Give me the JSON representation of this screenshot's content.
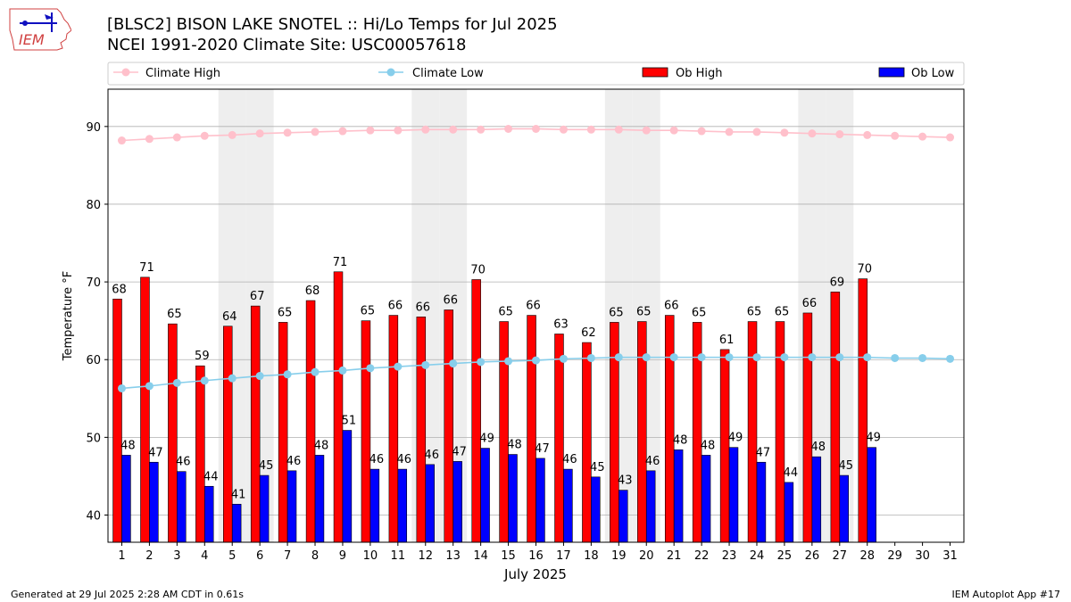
{
  "title_line1": "[BLSC2] BISON LAKE SNOTEL :: Hi/Lo Temps for Jul 2025",
  "title_line2": "NCEI 1991-2020 Climate Site: USC00057618",
  "logo_text": "IEM",
  "footer_left": "Generated at 29 Jul 2025 2:28 AM CDT in 0.61s",
  "footer_right": "IEM Autoplot App #17",
  "colors": {
    "ob_high": "#ff0000",
    "ob_low": "#0000ff",
    "climate_high": "#ffc0cb",
    "climate_low": "#87ceeb",
    "weekend_band": "#eeeeee",
    "grid": "#b0b0b0"
  },
  "chart_data": {
    "type": "bar",
    "xlabel": "July 2025",
    "ylabel": "Temperature °F",
    "ylim": [
      36.5,
      94.8
    ],
    "yticks": [
      40,
      50,
      60,
      70,
      80,
      90
    ],
    "grid": "horizontal",
    "legend_placement": "top",
    "categories": [
      1,
      2,
      3,
      4,
      5,
      6,
      7,
      8,
      9,
      10,
      11,
      12,
      13,
      14,
      15,
      16,
      17,
      18,
      19,
      20,
      21,
      22,
      23,
      24,
      25,
      26,
      27,
      28,
      29,
      30,
      31
    ],
    "shaded_days": [
      5,
      6,
      12,
      13,
      19,
      20,
      26,
      27
    ],
    "series": [
      {
        "name": "Climate High",
        "kind": "line",
        "values": [
          88.2,
          88.4,
          88.6,
          88.8,
          88.9,
          89.1,
          89.2,
          89.3,
          89.4,
          89.5,
          89.5,
          89.6,
          89.6,
          89.6,
          89.7,
          89.7,
          89.6,
          89.6,
          89.6,
          89.5,
          89.5,
          89.4,
          89.3,
          89.3,
          89.2,
          89.1,
          89.0,
          88.9,
          88.8,
          88.7,
          88.6
        ]
      },
      {
        "name": "Climate Low",
        "kind": "line",
        "values": [
          56.3,
          56.6,
          57.0,
          57.3,
          57.6,
          57.9,
          58.1,
          58.4,
          58.6,
          58.9,
          59.1,
          59.3,
          59.5,
          59.7,
          59.8,
          59.9,
          60.1,
          60.2,
          60.3,
          60.3,
          60.3,
          60.3,
          60.3,
          60.3,
          60.3,
          60.3,
          60.3,
          60.3,
          60.2,
          60.2,
          60.1
        ]
      },
      {
        "name": "Ob High",
        "kind": "bar",
        "values": [
          67.8,
          70.6,
          64.6,
          59.2,
          64.3,
          66.9,
          64.8,
          67.6,
          71.3,
          65.0,
          65.7,
          65.5,
          66.4,
          70.3,
          64.9,
          65.7,
          63.3,
          62.2,
          64.8,
          64.9,
          65.7,
          64.8,
          61.3,
          64.9,
          64.9,
          66.0,
          68.7,
          70.4,
          null,
          null,
          null
        ],
        "labels": [
          "68",
          "71",
          "65",
          "59",
          "64",
          "67",
          "65",
          "68",
          "71",
          "65",
          "66",
          "66",
          "66",
          "70",
          "65",
          "66",
          "63",
          "62",
          "65",
          "65",
          "66",
          "65",
          "61",
          "65",
          "65",
          "66",
          "69",
          "70",
          "",
          "",
          ""
        ]
      },
      {
        "name": "Ob Low",
        "kind": "bar",
        "values": [
          47.7,
          46.8,
          45.6,
          43.7,
          41.4,
          45.1,
          45.7,
          47.7,
          50.9,
          45.9,
          45.9,
          46.5,
          46.9,
          48.6,
          47.8,
          47.3,
          45.9,
          44.9,
          43.2,
          45.7,
          48.4,
          47.7,
          48.7,
          46.8,
          44.2,
          47.5,
          45.1,
          48.7,
          null,
          null,
          null
        ],
        "labels": [
          "48",
          "47",
          "46",
          "44",
          "41",
          "45",
          "46",
          "48",
          "51",
          "46",
          "46",
          "46",
          "47",
          "49",
          "48",
          "47",
          "46",
          "45",
          "43",
          "46",
          "48",
          "48",
          "49",
          "47",
          "44",
          "48",
          "45",
          "49",
          "",
          "",
          ""
        ]
      }
    ]
  }
}
